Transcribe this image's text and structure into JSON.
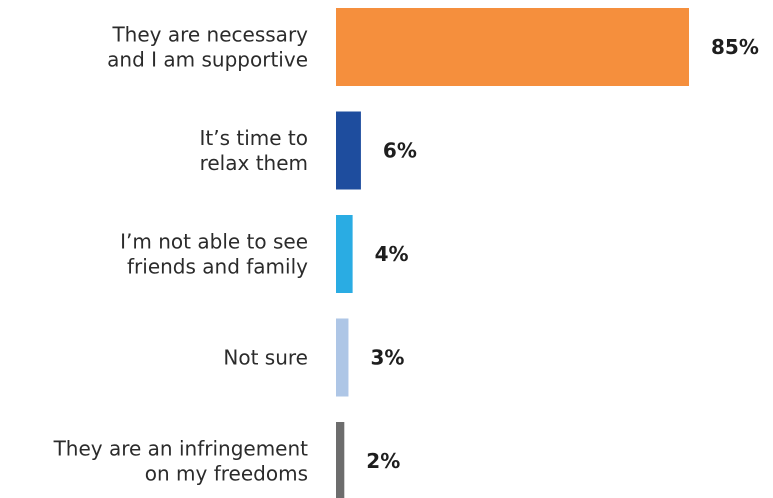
{
  "chart_data": {
    "type": "bar",
    "orientation": "horizontal",
    "title": "",
    "xlabel": "",
    "ylabel": "",
    "xlim": [
      0,
      100
    ],
    "grid": false,
    "categories": [
      [
        "They are necessary",
        "and I am supportive"
      ],
      [
        "It’s time to",
        "relax them"
      ],
      [
        "I’m not able to see",
        "friends and family"
      ],
      [
        "Not sure"
      ],
      [
        "They are an infringement",
        "on my freedoms"
      ]
    ],
    "values": [
      85,
      6,
      4,
      3,
      2
    ],
    "value_labels": [
      "85%",
      "6%",
      "4%",
      "3%",
      "2%"
    ],
    "colors": [
      "#f58f3d",
      "#1e4d9e",
      "#2aace3",
      "#aec6e6",
      "#6d6d6d"
    ]
  }
}
